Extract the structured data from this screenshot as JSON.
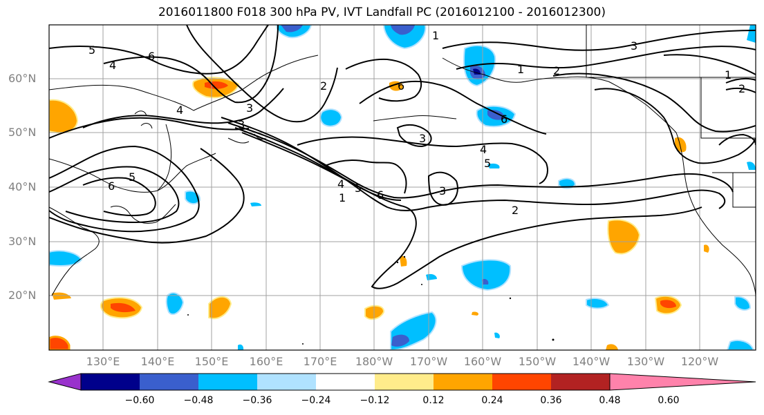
{
  "title": "2016011800 F018 300 hPa PV, IVT Landfall PC (2016012100 - 2016012300)",
  "lat_labels": [
    "60°N",
    "50°N",
    "40°N",
    "30°N",
    "20°N"
  ],
  "lon_labels": [
    "130°E",
    "140°E",
    "150°E",
    "160°E",
    "170°E",
    "180°W",
    "170°W",
    "160°W",
    "150°W",
    "140°W",
    "130°W",
    "120°W"
  ],
  "colorbar": {
    "colors": [
      "#9932cc",
      "#00008b",
      "#3a5fcd",
      "#00bfff",
      "#b0e2ff",
      "#ffffff",
      "#ffec8b",
      "#ffa500",
      "#ff4500",
      "#b22222",
      "#ff82ab"
    ],
    "ticks": [
      "−0.60",
      "−0.48",
      "−0.36",
      "−0.24",
      "−0.12",
      "0.12",
      "0.24",
      "0.36",
      "0.48",
      "0.60"
    ]
  },
  "contour_labels": [
    "5",
    "4",
    "6",
    "3",
    "2",
    "1",
    "6",
    "5",
    "4",
    "3",
    "2",
    "1",
    "6",
    "5",
    "4",
    "3",
    "6",
    "3",
    "2",
    "1",
    "5",
    "4",
    "6",
    "3",
    "2",
    "1"
  ]
}
